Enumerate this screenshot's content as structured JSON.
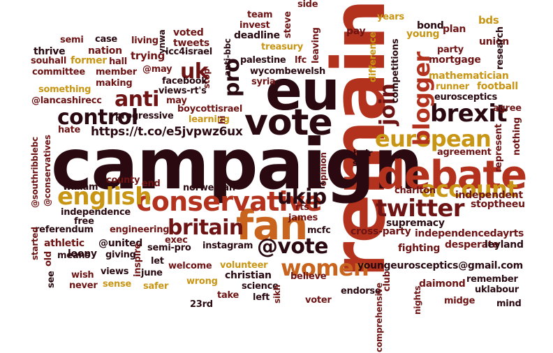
{
  "palette": {
    "dark": "#2a0a10",
    "maroon": "#6e1414",
    "red": "#b2321e",
    "orange": "#c8641e",
    "gold": "#c89614"
  },
  "words": [
    "remain",
    "campaign",
    "eu",
    "debate",
    "vote",
    "fan",
    "conservative",
    "english",
    "european",
    "brexit",
    "twitter",
    "britain",
    "women",
    "control",
    "anti",
    "@vote",
    "account",
    "blogger",
    "ukip",
    "join",
    "uk",
    "pro",
    "https://t.co/e5jvpwz6ux",
    "youngeurosceptics@gmail.com",
    "team",
    "side",
    "pay",
    "years",
    "bond",
    "young",
    "plan",
    "bds",
    "invest",
    "deadline",
    "steve",
    "leaving",
    "anti-bbc",
    "semi",
    "case",
    "living",
    "ynwa",
    "voted",
    "tweets",
    "thrive",
    "nation",
    "icc4israel",
    "treasury",
    "competitions",
    "party",
    "union",
    "research",
    "souhall",
    "hall",
    "trying",
    "palestine",
    "lfc",
    "difference",
    "mortgage",
    "former",
    "@may",
    "committee",
    "member",
    "stop",
    "wycombe",
    "welsh",
    "mathematician",
    "making",
    "facebook",
    "views-rt's",
    "syria",
    "runner",
    "football",
    "something",
    "eurosceptics",
    "@lancashirecc",
    "may",
    "boycottisrael",
    "agree",
    "progressive",
    "learning",
    "hate",
    "hi",
    "chair",
    "sw",
    "nothing",
    "represent",
    "opinion",
    "agreement",
    "@southribblebc",
    "@conservatives",
    "county",
    "end",
    "rt",
    "william",
    "norwegian",
    "charlton",
    "independent",
    "free",
    "independence",
    "rts",
    "james",
    "stoptheeu",
    "supremacy",
    "referendum",
    "engineering",
    "exec",
    "mcfc",
    "cross-party",
    "independencedayrts",
    "started",
    "athletic",
    "@united",
    "semi-pro",
    "instagram",
    "fighting",
    "desperate",
    "leyland",
    "old",
    "means",
    "inspire",
    "loony",
    "giving",
    "let",
    "welcome",
    "volunteer",
    "christian",
    "see",
    "wish",
    "views",
    "june",
    "never",
    "sense",
    "safer",
    "wrong",
    "science",
    "believe",
    "endorse",
    "club",
    "daimond",
    "remember",
    "take",
    "23rd",
    "left",
    "sikh",
    "voter",
    "comprehensive",
    "nights",
    "midge",
    "uklabour",
    "mind"
  ]
}
